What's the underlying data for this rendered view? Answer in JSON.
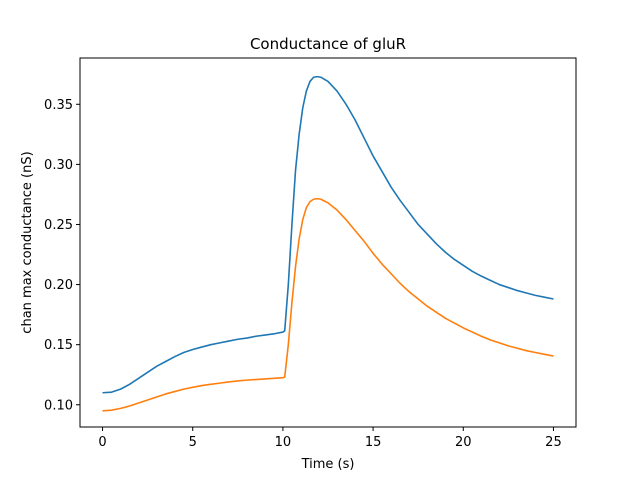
{
  "chart_data": {
    "type": "line",
    "title": "Conductance of gluR",
    "xlabel": "Time (s)",
    "ylabel": "chan max conductance (nS)",
    "xlim": [
      -1.25,
      26.25
    ],
    "ylim": [
      0.0815,
      0.3885
    ],
    "xticks": [
      0,
      5,
      10,
      15,
      20,
      25
    ],
    "xtick_labels": [
      "0",
      "5",
      "10",
      "15",
      "20",
      "25"
    ],
    "yticks": [
      0.1,
      0.15,
      0.2,
      0.25,
      0.3,
      0.35
    ],
    "ytick_labels": [
      "0.10",
      "0.15",
      "0.20",
      "0.25",
      "0.30",
      "0.35"
    ],
    "grid": false,
    "series": [
      {
        "color": "#1f77b4",
        "points": [
          [
            0,
            0.11
          ],
          [
            0.5,
            0.1105
          ],
          [
            1,
            0.113
          ],
          [
            1.5,
            0.117
          ],
          [
            2,
            0.122
          ],
          [
            2.5,
            0.127
          ],
          [
            3,
            0.132
          ],
          [
            3.5,
            0.136
          ],
          [
            4,
            0.14
          ],
          [
            4.5,
            0.1435
          ],
          [
            5,
            0.146
          ],
          [
            5.5,
            0.148
          ],
          [
            6,
            0.15
          ],
          [
            6.5,
            0.1515
          ],
          [
            7,
            0.153
          ],
          [
            7.5,
            0.1545
          ],
          [
            8,
            0.1555
          ],
          [
            8.5,
            0.157
          ],
          [
            9,
            0.158
          ],
          [
            9.5,
            0.159
          ],
          [
            10,
            0.1605
          ],
          [
            10.1,
            0.1615
          ],
          [
            10.3,
            0.2
          ],
          [
            10.5,
            0.25
          ],
          [
            10.7,
            0.295
          ],
          [
            10.9,
            0.325
          ],
          [
            11.1,
            0.347
          ],
          [
            11.3,
            0.361
          ],
          [
            11.5,
            0.369
          ],
          [
            11.7,
            0.3725
          ],
          [
            11.9,
            0.373
          ],
          [
            12.1,
            0.3725
          ],
          [
            12.5,
            0.369
          ],
          [
            13,
            0.361
          ],
          [
            13.5,
            0.35
          ],
          [
            14,
            0.337
          ],
          [
            14.5,
            0.322
          ],
          [
            15,
            0.307
          ],
          [
            15.5,
            0.294
          ],
          [
            16,
            0.281
          ],
          [
            16.5,
            0.27
          ],
          [
            17,
            0.26
          ],
          [
            17.5,
            0.25
          ],
          [
            18,
            0.242
          ],
          [
            18.5,
            0.234
          ],
          [
            19,
            0.227
          ],
          [
            19.5,
            0.221
          ],
          [
            20,
            0.216
          ],
          [
            20.5,
            0.211
          ],
          [
            21,
            0.207
          ],
          [
            21.5,
            0.2035
          ],
          [
            22,
            0.2
          ],
          [
            22.5,
            0.1975
          ],
          [
            23,
            0.195
          ],
          [
            23.5,
            0.193
          ],
          [
            24,
            0.191
          ],
          [
            24.5,
            0.1895
          ],
          [
            25,
            0.188
          ]
        ]
      },
      {
        "color": "#ff7f0e",
        "points": [
          [
            0,
            0.095
          ],
          [
            0.5,
            0.0955
          ],
          [
            1,
            0.097
          ],
          [
            1.5,
            0.099
          ],
          [
            2,
            0.1015
          ],
          [
            2.5,
            0.104
          ],
          [
            3,
            0.1065
          ],
          [
            3.5,
            0.109
          ],
          [
            4,
            0.111
          ],
          [
            4.5,
            0.113
          ],
          [
            5,
            0.1145
          ],
          [
            5.5,
            0.116
          ],
          [
            6,
            0.117
          ],
          [
            6.5,
            0.118
          ],
          [
            7,
            0.119
          ],
          [
            7.5,
            0.1198
          ],
          [
            8,
            0.1205
          ],
          [
            8.5,
            0.121
          ],
          [
            9,
            0.1215
          ],
          [
            9.5,
            0.122
          ],
          [
            10,
            0.1225
          ],
          [
            10.1,
            0.123
          ],
          [
            10.3,
            0.15
          ],
          [
            10.5,
            0.185
          ],
          [
            10.7,
            0.215
          ],
          [
            10.9,
            0.238
          ],
          [
            11.1,
            0.254
          ],
          [
            11.3,
            0.264
          ],
          [
            11.5,
            0.269
          ],
          [
            11.7,
            0.271
          ],
          [
            11.9,
            0.2715
          ],
          [
            12.1,
            0.271
          ],
          [
            12.5,
            0.268
          ],
          [
            13,
            0.262
          ],
          [
            13.5,
            0.254
          ],
          [
            14,
            0.245
          ],
          [
            14.5,
            0.236
          ],
          [
            15,
            0.226
          ],
          [
            15.5,
            0.217
          ],
          [
            16,
            0.209
          ],
          [
            16.5,
            0.201
          ],
          [
            17,
            0.194
          ],
          [
            17.5,
            0.188
          ],
          [
            18,
            0.182
          ],
          [
            18.5,
            0.177
          ],
          [
            19,
            0.172
          ],
          [
            19.5,
            0.168
          ],
          [
            20,
            0.164
          ],
          [
            20.5,
            0.1605
          ],
          [
            21,
            0.157
          ],
          [
            21.5,
            0.154
          ],
          [
            22,
            0.1515
          ],
          [
            22.5,
            0.149
          ],
          [
            23,
            0.147
          ],
          [
            23.5,
            0.145
          ],
          [
            24,
            0.1435
          ],
          [
            24.5,
            0.142
          ],
          [
            25,
            0.1405
          ]
        ]
      }
    ]
  }
}
